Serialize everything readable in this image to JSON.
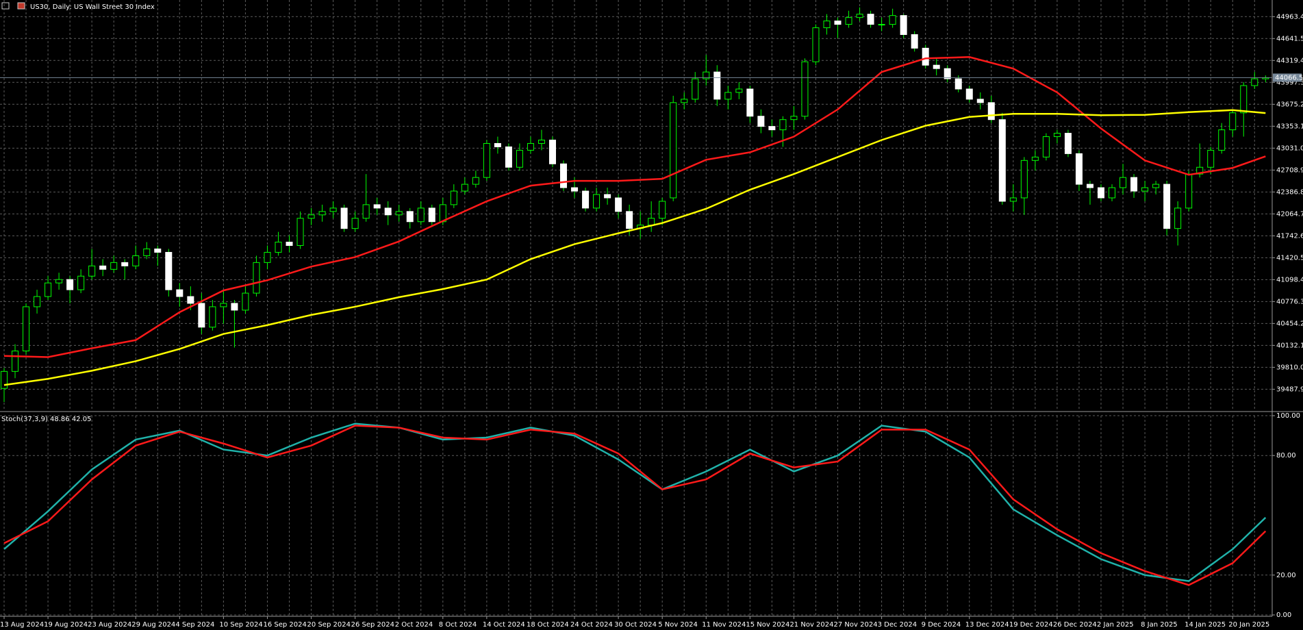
{
  "chart_data": [
    {
      "type": "candlestick",
      "title": "US30, Daily: US Wall Street 30 Index",
      "categories": [
        "13 Aug 2024",
        null,
        null,
        null,
        "19 Aug 2024",
        null,
        null,
        null,
        "23 Aug 2024",
        null,
        null,
        null,
        "29 Aug 2024",
        null,
        null,
        null,
        "4 Sep 2024",
        null,
        null,
        null,
        "10 Sep 2024",
        null,
        null,
        null,
        "16 Sep 2024",
        null,
        null,
        null,
        "20 Sep 2024",
        null,
        null,
        null,
        "26 Sep 2024",
        null,
        null,
        null,
        "2 Oct 2024",
        null,
        null,
        null,
        "8 Oct 2024",
        null,
        null,
        null,
        "14 Oct 2024",
        null,
        null,
        null,
        "18 Oct 2024",
        null,
        null,
        null,
        "24 Oct 2024",
        null,
        null,
        null,
        "30 Oct 2024",
        null,
        null,
        null,
        "5 Nov 2024",
        null,
        null,
        null,
        "11 Nov 2024",
        null,
        null,
        null,
        "15 Nov 2024",
        null,
        null,
        null,
        "21 Nov 2024",
        null,
        null,
        null,
        "27 Nov 2024",
        null,
        null,
        null,
        "3 Dec 2024",
        null,
        null,
        null,
        "9 Dec 2024",
        null,
        null,
        null,
        "13 Dec 2024",
        null,
        null,
        null,
        "19 Dec 2024",
        null,
        null,
        null,
        "26 Dec 2024",
        null,
        null,
        null,
        "2 Jan 2025",
        null,
        null,
        null,
        "8 Jan 2025",
        null,
        null,
        null,
        "14 Jan 2025",
        null,
        null,
        null,
        "20 Jan 2025",
        null,
        null,
        null
      ],
      "ohlc": [
        [
          39500,
          39800,
          39300,
          39750
        ],
        [
          39750,
          40150,
          39650,
          40050
        ],
        [
          40050,
          40750,
          40000,
          40700
        ],
        [
          40700,
          40950,
          40600,
          40850
        ],
        [
          40850,
          41150,
          40800,
          41050
        ],
        [
          41050,
          41200,
          40950,
          41100
        ],
        [
          41100,
          41150,
          40750,
          40950
        ],
        [
          40950,
          41250,
          40900,
          41150
        ],
        [
          41150,
          41550,
          41100,
          41300
        ],
        [
          41300,
          41400,
          41150,
          41250
        ],
        [
          41250,
          41450,
          41200,
          41350
        ],
        [
          41350,
          41400,
          41100,
          41300
        ],
        [
          41300,
          41600,
          41250,
          41450
        ],
        [
          41450,
          41650,
          41400,
          41550
        ],
        [
          41550,
          41600,
          41300,
          41500
        ],
        [
          41500,
          41550,
          40850,
          40950
        ],
        [
          40950,
          41050,
          40700,
          40850
        ],
        [
          40850,
          41000,
          40650,
          40750
        ],
        [
          40750,
          40900,
          40300,
          40400
        ],
        [
          40400,
          40800,
          40350,
          40700
        ],
        [
          40700,
          40950,
          40450,
          40750
        ],
        [
          40750,
          40800,
          40100,
          40650
        ],
        [
          40650,
          41000,
          40600,
          40900
        ],
        [
          40900,
          41450,
          40850,
          41350
        ],
        [
          41350,
          41600,
          41250,
          41500
        ],
        [
          41500,
          41800,
          41450,
          41650
        ],
        [
          41650,
          41750,
          41500,
          41600
        ],
        [
          41600,
          42100,
          41550,
          42000
        ],
        [
          42000,
          42150,
          41900,
          42050
        ],
        [
          42050,
          42200,
          41950,
          42100
        ],
        [
          42100,
          42250,
          42000,
          42150
        ],
        [
          42150,
          42200,
          41800,
          41850
        ],
        [
          41850,
          42100,
          41800,
          42000
        ],
        [
          42000,
          42650,
          41950,
          42200
        ],
        [
          42200,
          42300,
          42050,
          42150
        ],
        [
          42150,
          42250,
          41900,
          42050
        ],
        [
          42050,
          42200,
          41950,
          42100
        ],
        [
          42100,
          42150,
          41850,
          41950
        ],
        [
          41950,
          42250,
          41900,
          42150
        ],
        [
          42150,
          42200,
          41900,
          41950
        ],
        [
          41950,
          42300,
          41900,
          42200
        ],
        [
          42200,
          42500,
          42150,
          42400
        ],
        [
          42400,
          42600,
          42350,
          42500
        ],
        [
          42500,
          42700,
          42450,
          42600
        ],
        [
          42600,
          43150,
          42550,
          43100
        ],
        [
          43100,
          43200,
          42950,
          43050
        ],
        [
          43050,
          43100,
          42700,
          42750
        ],
        [
          42750,
          43100,
          42700,
          43000
        ],
        [
          43000,
          43200,
          42950,
          43100
        ],
        [
          43100,
          43300,
          43000,
          43150
        ],
        [
          43150,
          43200,
          42750,
          42800
        ],
        [
          42800,
          42850,
          42400,
          42450
        ],
        [
          42450,
          42600,
          42300,
          42400
        ],
        [
          42400,
          42450,
          42100,
          42150
        ],
        [
          42150,
          42450,
          42100,
          42350
        ],
        [
          42350,
          42450,
          42200,
          42300
        ],
        [
          42300,
          42350,
          42000,
          42100
        ],
        [
          42100,
          42200,
          41750,
          41850
        ],
        [
          41850,
          42100,
          41700,
          41900
        ],
        [
          41900,
          42250,
          41800,
          42000
        ],
        [
          42000,
          42300,
          41900,
          42250
        ],
        [
          42300,
          43800,
          42250,
          43700
        ],
        [
          43700,
          43850,
          43600,
          43750
        ],
        [
          43750,
          44150,
          43700,
          44050
        ],
        [
          44050,
          44400,
          43950,
          44150
        ],
        [
          44150,
          44250,
          43650,
          43750
        ],
        [
          43750,
          43950,
          43600,
          43850
        ],
        [
          43850,
          44000,
          43750,
          43900
        ],
        [
          43900,
          43950,
          43400,
          43500
        ],
        [
          43500,
          43600,
          43250,
          43350
        ],
        [
          43350,
          43450,
          43200,
          43300
        ],
        [
          43300,
          43500,
          43050,
          43450
        ],
        [
          43450,
          43650,
          43300,
          43500
        ],
        [
          43500,
          44350,
          43450,
          44300
        ],
        [
          44300,
          44850,
          44250,
          44800
        ],
        [
          44800,
          45000,
          44700,
          44900
        ],
        [
          44900,
          44950,
          44650,
          44850
        ],
        [
          44850,
          45050,
          44800,
          44950
        ],
        [
          44950,
          45100,
          44900,
          45000
        ],
        [
          45000,
          45050,
          44800,
          44850
        ],
        [
          44850,
          44950,
          44750,
          44850
        ],
        [
          44850,
          45080,
          44800,
          44980
        ],
        [
          44980,
          45000,
          44650,
          44700
        ],
        [
          44700,
          44750,
          44450,
          44500
        ],
        [
          44500,
          44550,
          44200,
          44250
        ],
        [
          44250,
          44350,
          44100,
          44200
        ],
        [
          44200,
          44250,
          44000,
          44050
        ],
        [
          44050,
          44100,
          43850,
          43900
        ],
        [
          43900,
          43950,
          43700,
          43750
        ],
        [
          43750,
          43850,
          43600,
          43700
        ],
        [
          43700,
          43800,
          43400,
          43450
        ],
        [
          43450,
          43550,
          42200,
          42250
        ],
        [
          42250,
          42500,
          42100,
          42300
        ],
        [
          42300,
          42900,
          42050,
          42850
        ],
        [
          42850,
          43000,
          42700,
          42900
        ],
        [
          42900,
          43250,
          42850,
          43200
        ],
        [
          43200,
          43300,
          43100,
          43250
        ],
        [
          43250,
          43300,
          42900,
          42950
        ],
        [
          42950,
          43000,
          42400,
          42500
        ],
        [
          42500,
          42550,
          42200,
          42450
        ],
        [
          42450,
          42500,
          42250,
          42300
        ],
        [
          42300,
          42500,
          42250,
          42450
        ],
        [
          42450,
          42800,
          42350,
          42600
        ],
        [
          42600,
          42650,
          42300,
          42400
        ],
        [
          42400,
          42550,
          42250,
          42450
        ],
        [
          42450,
          42550,
          42350,
          42500
        ],
        [
          42500,
          42550,
          41750,
          41850
        ],
        [
          41850,
          42250,
          41600,
          42150
        ],
        [
          42150,
          42700,
          42100,
          42650
        ],
        [
          42650,
          43100,
          42600,
          42750
        ],
        [
          42750,
          43050,
          42650,
          43000
        ],
        [
          43000,
          43400,
          42950,
          43300
        ],
        [
          43300,
          43600,
          43200,
          43550
        ],
        [
          43550,
          44000,
          43200,
          43950
        ],
        [
          43950,
          44150,
          43900,
          44050
        ],
        [
          44050,
          44100,
          44000,
          44066.5
        ]
      ],
      "bull_color": "#000000",
      "bear_color": "#ffffff",
      "outline_color": "#00ff00",
      "last_line_color": "#778899",
      "overlays": [
        {
          "color": "#ff1a1a",
          "x": [
            0,
            4,
            8,
            12,
            16,
            20,
            24,
            28,
            32,
            36,
            40,
            44,
            48,
            52,
            56,
            60,
            64,
            68,
            72,
            76,
            80,
            84,
            88,
            92,
            96,
            100,
            104,
            108,
            112,
            115
          ],
          "values": [
            39978,
            39960,
            40090,
            40210,
            40620,
            40940,
            41090,
            41290,
            41430,
            41660,
            41960,
            42250,
            42480,
            42550,
            42550,
            42580,
            42860,
            42970,
            43200,
            43600,
            44150,
            44350,
            44370,
            44200,
            43850,
            43320,
            42850,
            42640,
            42740,
            42910
          ]
        },
        {
          "color": "#ffff00",
          "x": [
            0,
            4,
            8,
            12,
            16,
            20,
            24,
            28,
            32,
            36,
            40,
            44,
            48,
            52,
            56,
            60,
            64,
            68,
            72,
            76,
            80,
            84,
            88,
            92,
            96,
            100,
            104,
            108,
            112,
            115
          ],
          "values": [
            39550,
            39640,
            39760,
            39900,
            40080,
            40300,
            40430,
            40580,
            40700,
            40840,
            40960,
            41100,
            41400,
            41620,
            41780,
            41930,
            42140,
            42420,
            42650,
            42900,
            43150,
            43360,
            43490,
            43535,
            43535,
            43515,
            43520,
            43560,
            43590,
            43546
          ]
        }
      ],
      "ylim": [
        39200,
        45208
      ],
      "yticks": [
        44963.4,
        44641.5,
        44319.4,
        43997.3,
        43675.2,
        43353.1,
        {
          "value": 43031.0,
          "label": "43031.0"
        },
        42708.9,
        42386.8,
        42064.7,
        41742.6,
        41420.5,
        41098.4,
        40776.3,
        40454.2,
        40132.1,
        {
          "value": 39810.0,
          "label": "39810.0"
        },
        39487.9
      ],
      "grid": true
    },
    {
      "type": "line",
      "title": "Stoch(37,3,9) 48.86 42.05",
      "x": [
        0,
        4,
        8,
        12,
        16,
        20,
        24,
        28,
        32,
        36,
        40,
        44,
        48,
        52,
        56,
        60,
        64,
        68,
        72,
        76,
        80,
        84,
        88,
        92,
        96,
        100,
        104,
        108,
        112,
        115
      ],
      "series": [
        {
          "color": "#20b2aa",
          "values": [
            33,
            52,
            73,
            88,
            92.5,
            83,
            80,
            89,
            96,
            94,
            88,
            89,
            94,
            90,
            78,
            63,
            72,
            83,
            72,
            80,
            95,
            92,
            79,
            53,
            40,
            28,
            20,
            17,
            33,
            48.86
          ]
        },
        {
          "color": "#ff1a1a",
          "values": [
            36,
            47,
            68,
            85,
            92,
            86,
            79,
            85,
            95,
            94,
            89,
            88,
            93,
            91,
            81,
            63,
            68,
            81,
            74,
            77,
            93,
            93,
            83,
            58,
            43,
            31,
            22,
            15,
            26,
            42.05
          ]
        }
      ],
      "ylim": [
        0,
        100
      ],
      "yticks": [
        {
          "value": 100,
          "label": "100.00"
        },
        {
          "value": 80,
          "label": "80.00"
        },
        {
          "value": 20,
          "label": "20.00"
        },
        {
          "value": 0,
          "label": "0.00"
        }
      ],
      "grid": true
    }
  ]
}
